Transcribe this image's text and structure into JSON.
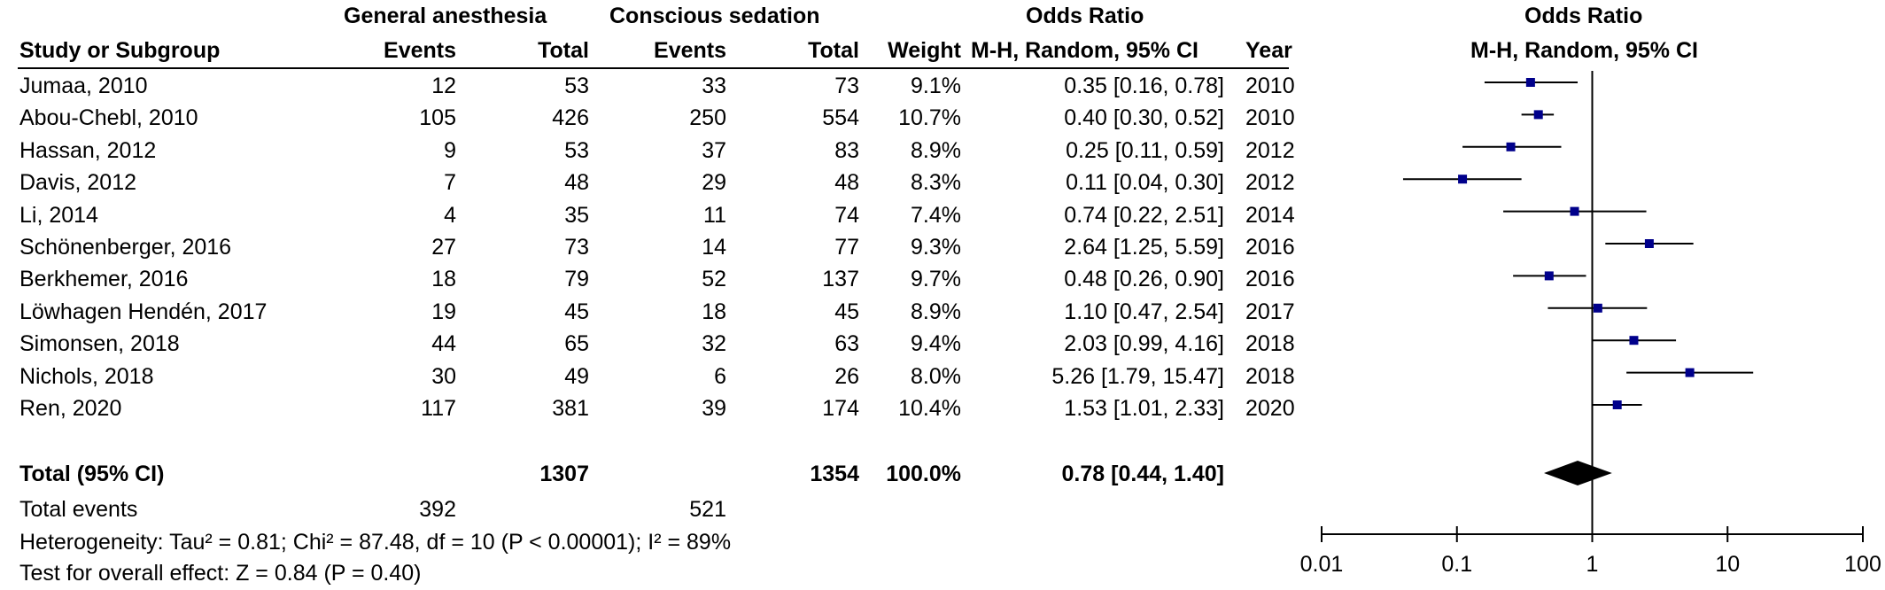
{
  "header": {
    "group1": "General anesthesia",
    "group2": "Conscious sedation",
    "effect": "Odds Ratio",
    "plot_title": "Odds Ratio",
    "col_study": "Study or Subgroup",
    "col_events1": "Events",
    "col_total1": "Total",
    "col_events2": "Events",
    "col_total2": "Total",
    "col_weight": "Weight",
    "col_method": "M-H, Random, 95% CI",
    "col_year": "Year",
    "plot_method": "M-H, Random, 95% CI"
  },
  "studies": [
    {
      "name": "Jumaa, 2010",
      "e1": "12",
      "n1": "53",
      "e2": "33",
      "n2": "73",
      "weight": "9.1%",
      "ci": "0.35 [0.16, 0.78]",
      "year": "2010"
    },
    {
      "name": "Abou-Chebl, 2010",
      "e1": "105",
      "n1": "426",
      "e2": "250",
      "n2": "554",
      "weight": "10.7%",
      "ci": "0.40 [0.30, 0.52]",
      "year": "2010"
    },
    {
      "name": "Hassan, 2012",
      "e1": "9",
      "n1": "53",
      "e2": "37",
      "n2": "83",
      "weight": "8.9%",
      "ci": "0.25 [0.11, 0.59]",
      "year": "2012"
    },
    {
      "name": "Davis, 2012",
      "e1": "7",
      "n1": "48",
      "e2": "29",
      "n2": "48",
      "weight": "8.3%",
      "ci": "0.11 [0.04, 0.30]",
      "year": "2012"
    },
    {
      "name": "Li, 2014",
      "e1": "4",
      "n1": "35",
      "e2": "11",
      "n2": "74",
      "weight": "7.4%",
      "ci": "0.74 [0.22, 2.51]",
      "year": "2014"
    },
    {
      "name": "Schönenberger, 2016",
      "e1": "27",
      "n1": "73",
      "e2": "14",
      "n2": "77",
      "weight": "9.3%",
      "ci": "2.64 [1.25, 5.59]",
      "year": "2016"
    },
    {
      "name": "Berkhemer, 2016",
      "e1": "18",
      "n1": "79",
      "e2": "52",
      "n2": "137",
      "weight": "9.7%",
      "ci": "0.48 [0.26, 0.90]",
      "year": "2016"
    },
    {
      "name": "Löwhagen Hendén, 2017",
      "e1": "19",
      "n1": "45",
      "e2": "18",
      "n2": "45",
      "weight": "8.9%",
      "ci": "1.10 [0.47, 2.54]",
      "year": "2017"
    },
    {
      "name": "Simonsen, 2018",
      "e1": "44",
      "n1": "65",
      "e2": "32",
      "n2": "63",
      "weight": "9.4%",
      "ci": "2.03 [0.99, 4.16]",
      "year": "2018"
    },
    {
      "name": "Nichols, 2018",
      "e1": "30",
      "n1": "49",
      "e2": "6",
      "n2": "26",
      "weight": "8.0%",
      "ci": "5.26 [1.79, 15.47]",
      "year": "2018"
    },
    {
      "name": "Ren, 2020",
      "e1": "117",
      "n1": "381",
      "e2": "39",
      "n2": "174",
      "weight": "10.4%",
      "ci": "1.53 [1.01, 2.33]",
      "year": "2020"
    }
  ],
  "total": {
    "label": "Total (95% CI)",
    "n1": "1307",
    "n2": "1354",
    "weight": "100.0%",
    "ci": "0.78 [0.44, 1.40]",
    "events_label": "Total events",
    "e1": "392",
    "e2": "521"
  },
  "footnotes": {
    "heterogeneity": "Heterogeneity: Tau² = 0.81; Chi² = 87.48, df = 10 (P < 0.00001); I² = 89%",
    "overall": "Test for overall effect: Z = 0.84 (P = 0.40)"
  },
  "chart_data": {
    "type": "scatter",
    "title": "Odds Ratio",
    "subtitle": "M-H, Random, 95% CI",
    "x_scale": "log",
    "xlim": [
      0.01,
      100
    ],
    "x_ticks": [
      0.01,
      0.1,
      1,
      10,
      100
    ],
    "x_tick_labels": [
      "0.01",
      "0.1",
      "1",
      "10",
      "100"
    ],
    "reference_line": 1,
    "points": [
      {
        "label": "Jumaa, 2010",
        "or": 0.35,
        "lo": 0.16,
        "hi": 0.78
      },
      {
        "label": "Abou-Chebl, 2010",
        "or": 0.4,
        "lo": 0.3,
        "hi": 0.52
      },
      {
        "label": "Hassan, 2012",
        "or": 0.25,
        "lo": 0.11,
        "hi": 0.59
      },
      {
        "label": "Davis, 2012",
        "or": 0.11,
        "lo": 0.04,
        "hi": 0.3
      },
      {
        "label": "Li, 2014",
        "or": 0.74,
        "lo": 0.22,
        "hi": 2.51
      },
      {
        "label": "Schönenberger, 2016",
        "or": 2.64,
        "lo": 1.25,
        "hi": 5.59
      },
      {
        "label": "Berkhemer, 2016",
        "or": 0.48,
        "lo": 0.26,
        "hi": 0.9
      },
      {
        "label": "Löwhagen Hendén, 2017",
        "or": 1.1,
        "lo": 0.47,
        "hi": 2.54
      },
      {
        "label": "Simonsen, 2018",
        "or": 2.03,
        "lo": 0.99,
        "hi": 4.16
      },
      {
        "label": "Nichols, 2018",
        "or": 5.26,
        "lo": 1.79,
        "hi": 15.47
      },
      {
        "label": "Ren, 2020",
        "or": 1.53,
        "lo": 1.01,
        "hi": 2.33
      }
    ],
    "pooled": {
      "label": "Total (95% CI)",
      "or": 0.78,
      "lo": 0.44,
      "hi": 1.4
    },
    "colors": {
      "point": "#00008b",
      "line": "#000000",
      "diamond": "#000000"
    }
  }
}
